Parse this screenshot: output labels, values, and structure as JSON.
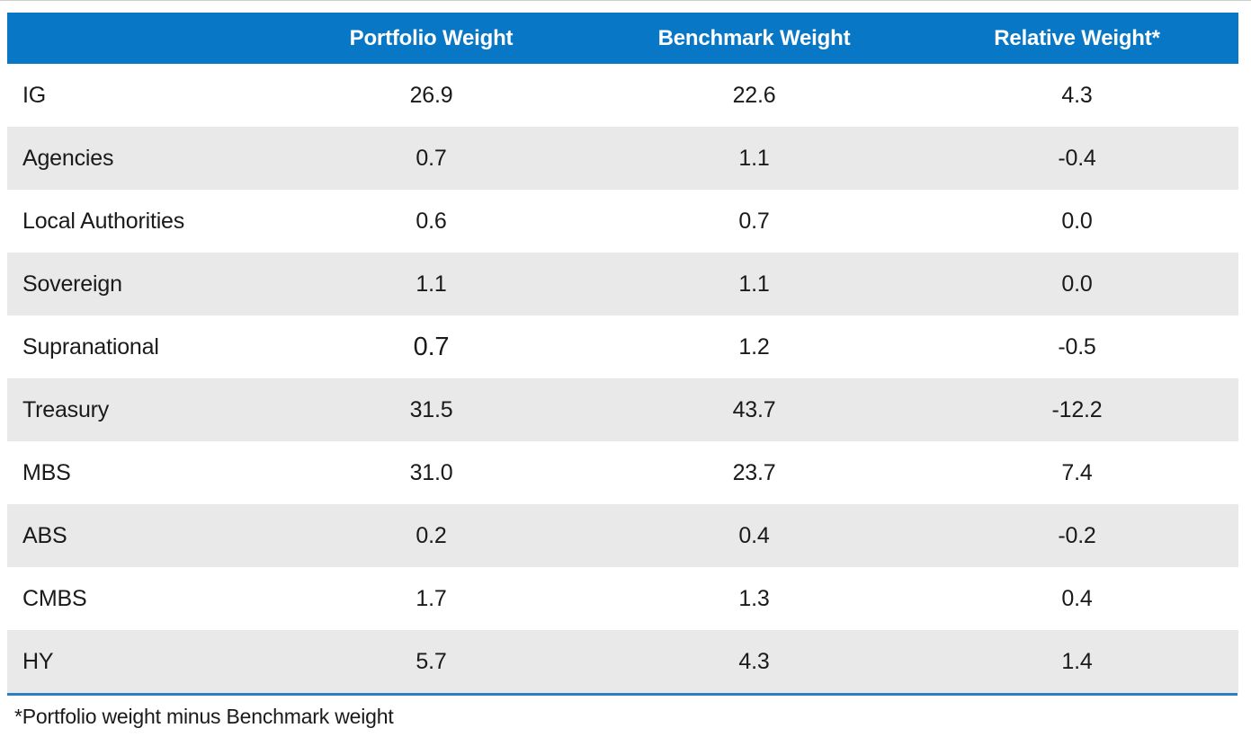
{
  "chart_data": {
    "type": "table",
    "columns": [
      "",
      "Portfolio Weight",
      "Benchmark Weight",
      "Relative Weight*"
    ],
    "rows": [
      {
        "label": "IG",
        "portfolio": "26.9",
        "benchmark": "22.6",
        "relative": "4.3"
      },
      {
        "label": "Agencies",
        "portfolio": "0.7",
        "benchmark": "1.1",
        "relative": "-0.4"
      },
      {
        "label": "Local Authorities",
        "portfolio": "0.6",
        "benchmark": "0.7",
        "relative": "0.0"
      },
      {
        "label": "Sovereign",
        "portfolio": "1.1",
        "benchmark": "1.1",
        "relative": "0.0"
      },
      {
        "label": "Supranational",
        "portfolio": "0.7",
        "benchmark": "1.2",
        "relative": "-0.5",
        "portfolio_emphasis": true
      },
      {
        "label": "Treasury",
        "portfolio": "31.5",
        "benchmark": "43.7",
        "relative": "-12.2"
      },
      {
        "label": "MBS",
        "portfolio": "31.0",
        "benchmark": "23.7",
        "relative": "7.4"
      },
      {
        "label": "ABS",
        "portfolio": "0.2",
        "benchmark": "0.4",
        "relative": "-0.2"
      },
      {
        "label": "CMBS",
        "portfolio": "1.7",
        "benchmark": "1.3",
        "relative": "0.4"
      },
      {
        "label": "HY",
        "portfolio": "5.7",
        "benchmark": "4.3",
        "relative": "1.4"
      }
    ],
    "footnote": "*Portfolio weight minus Benchmark weight"
  },
  "colors": {
    "header_bg": "#0878c6",
    "header_text": "#ffffff",
    "row_bg": "#ffffff",
    "row_alt_bg": "#e9e9e9",
    "body_text": "#1a1a1a",
    "rule_blue": "#2e7fc2"
  }
}
